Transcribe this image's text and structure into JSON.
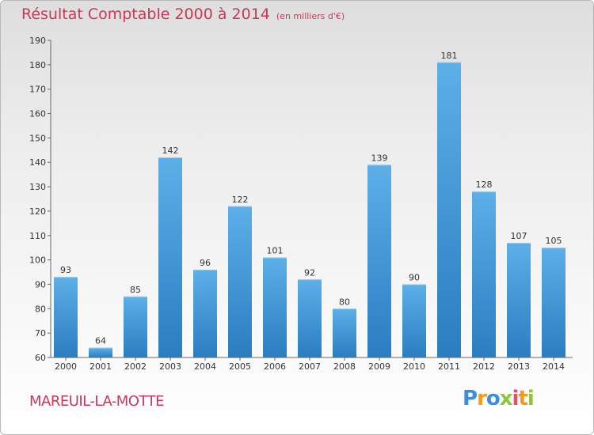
{
  "header": {
    "title": "Résultat Comptable 2000 à 2014",
    "subtitle": "(en milliers d'€)"
  },
  "footer": {
    "commune": "MAREUIL-LA-MOTTE",
    "logo_letters": [
      {
        "char": "P",
        "color": "#3a8fd8"
      },
      {
        "char": "r",
        "color": "#f29a1d"
      },
      {
        "char": "o",
        "color": "#3a8fd8"
      },
      {
        "char": "x",
        "color": "#8cc63f"
      },
      {
        "char": "i",
        "color": "#e94e6a"
      },
      {
        "char": "t",
        "color": "#f29a1d"
      },
      {
        "char": "i",
        "color": "#8cc63f"
      }
    ]
  },
  "colors": {
    "bar_top": "#5dafe8",
    "bar_bottom": "#2a7dc0",
    "title": "#c8385a"
  },
  "chart_data": {
    "type": "bar",
    "title": "Résultat Comptable 2000 à 2014",
    "subtitle": "(en milliers d'€)",
    "xlabel": "",
    "ylabel": "",
    "categories": [
      "2000",
      "2001",
      "2002",
      "2003",
      "2004",
      "2005",
      "2006",
      "2007",
      "2008",
      "2009",
      "2010",
      "2011",
      "2012",
      "2013",
      "2014"
    ],
    "values": [
      93,
      64,
      85,
      142,
      96,
      122,
      101,
      92,
      80,
      139,
      90,
      181,
      128,
      107,
      105
    ],
    "ylim": [
      60,
      190
    ],
    "yticks": [
      60,
      70,
      80,
      90,
      100,
      110,
      120,
      130,
      140,
      150,
      160,
      170,
      180,
      190
    ],
    "grid": false,
    "legend": "none"
  }
}
